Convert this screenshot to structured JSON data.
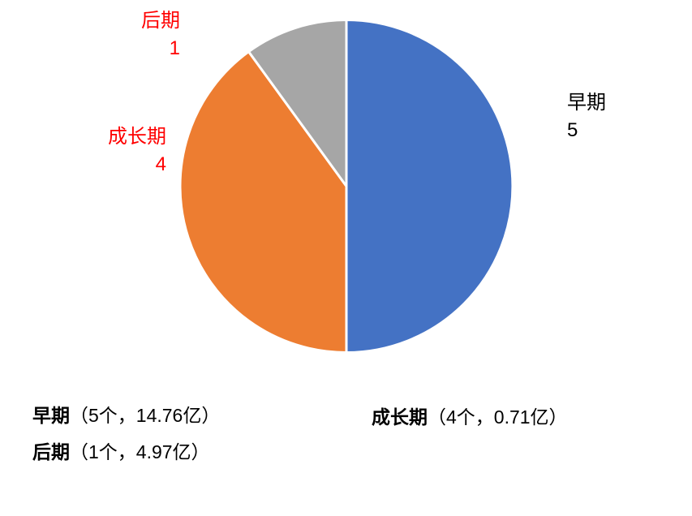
{
  "chart_data": {
    "type": "pie",
    "title": "",
    "categories": [
      "早期",
      "成长期",
      "后期"
    ],
    "values": [
      5,
      4,
      1
    ],
    "total": 10,
    "colors": [
      "#4472C4",
      "#ED7D31",
      "#A6A6A6"
    ],
    "slice_border_color": "#ffffff",
    "start_angle": "12-oclock",
    "direction": "clockwise",
    "legend_position": "none",
    "callouts": [
      {
        "name": "早期",
        "value": "5",
        "text_color": "#000000",
        "position": "right"
      },
      {
        "name": "成长期",
        "value": "4",
        "text_color": "#FF0000",
        "position": "left"
      },
      {
        "name": "后期",
        "value": "1",
        "text_color": "#FF0000",
        "position": "top-left"
      }
    ],
    "annotations": [
      {
        "label": "早期",
        "detail": "（5个，14.76亿）"
      },
      {
        "label": "后期",
        "detail": "（1个，4.97亿）"
      },
      {
        "label": "成长期",
        "detail": "（4个，0.71亿）"
      }
    ]
  },
  "styles": {
    "background": "#ffffff",
    "callout_red": "#FF0000",
    "callout_black": "#000000"
  }
}
